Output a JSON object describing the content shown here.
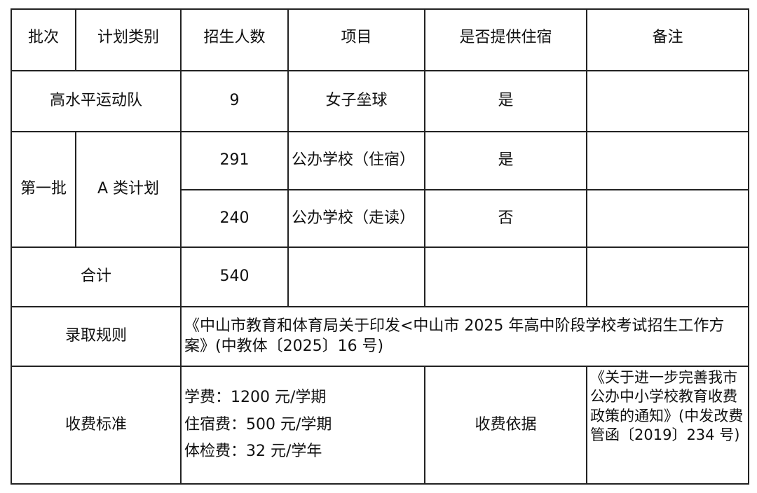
{
  "headers": [
    "批次",
    "计划类别",
    "招生人数",
    "项目",
    "是否提供住宿",
    "备注"
  ],
  "rows": {
    "sports": {
      "category": "高水平运动队",
      "count": "9",
      "project": "女子垒球",
      "lodging": "是",
      "note": ""
    },
    "first_batch": {
      "batch": "第一批",
      "category": "A 类计划",
      "items": [
        {
          "count": "291",
          "project": "公办学校（住宿）",
          "lodging": "是",
          "note": ""
        },
        {
          "count": "240",
          "project": "公办学校（走读）",
          "lodging": "否",
          "note": ""
        }
      ]
    },
    "total": {
      "label": "合计",
      "count": "540"
    },
    "admission": {
      "label": "录取规则",
      "text": "《中山市教育和体育局关于印发<中山市 2025 年高中阶段学校考试招生工作方案》(中教体〔2025〕16 号)"
    },
    "fees": {
      "label": "收费标准",
      "items": [
        "学费：1200 元/学期",
        "住宿费：500 元/学期",
        "体检费：32 元/学年"
      ],
      "basis_label": "收费依据",
      "basis_text": "《关于进一步完善我市公办中小学校教育收费政策的通知》(中发改费管函〔2019〕234 号)"
    }
  }
}
